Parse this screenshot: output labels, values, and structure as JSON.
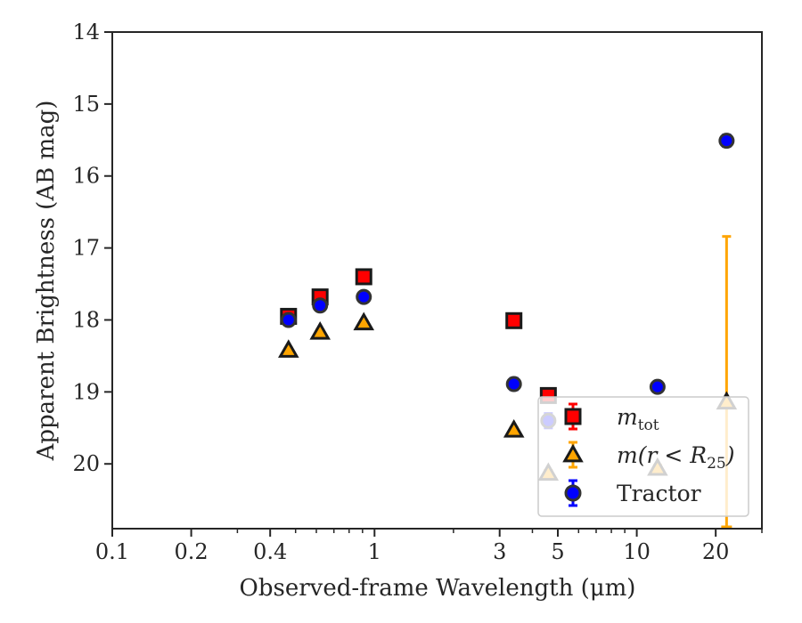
{
  "chart_data": {
    "type": "scatter",
    "xlabel": "Observed-frame Wavelength (μm)",
    "ylabel": "Apparent Brightness (AB mag)",
    "xscale": "log",
    "xlim": [
      0.1,
      30
    ],
    "ylim": [
      20.9,
      14
    ],
    "y_inverted": true,
    "grid": false,
    "legend_position": "lower-right",
    "x_ticks": [
      {
        "value": 0.1,
        "label": "0.1"
      },
      {
        "value": 0.2,
        "label": "0.2"
      },
      {
        "value": 0.4,
        "label": "0.4"
      },
      {
        "value": 1,
        "label": "1"
      },
      {
        "value": 3,
        "label": "3"
      },
      {
        "value": 5,
        "label": "5"
      },
      {
        "value": 10,
        "label": "10"
      },
      {
        "value": 20,
        "label": "20"
      }
    ],
    "y_ticks": [
      {
        "value": 14,
        "label": "14"
      },
      {
        "value": 15,
        "label": "15"
      },
      {
        "value": 16,
        "label": "16"
      },
      {
        "value": 17,
        "label": "17"
      },
      {
        "value": 18,
        "label": "18"
      },
      {
        "value": 19,
        "label": "19"
      },
      {
        "value": 20,
        "label": "20"
      }
    ],
    "series": [
      {
        "name": "m_tot",
        "legend_main": "m",
        "legend_sub": "tot",
        "marker": "square",
        "color": "#ff0000",
        "edge": "#1a1a1a",
        "points": [
          {
            "x": 0.47,
            "y": 17.95,
            "err": 0.05
          },
          {
            "x": 0.62,
            "y": 17.68,
            "err": 0.05
          },
          {
            "x": 0.91,
            "y": 17.4,
            "err": 0.04
          },
          {
            "x": 3.4,
            "y": 18.01,
            "err": 0.04
          },
          {
            "x": 4.6,
            "y": 19.05,
            "err": 0.06
          }
        ]
      },
      {
        "name": "m(r < R25)",
        "legend_main": "m(r < R",
        "legend_sub": "25",
        "legend_close": ")",
        "marker": "triangle",
        "color": "#ffa500",
        "edge": "#1a1a1a",
        "points": [
          {
            "x": 0.47,
            "y": 18.42,
            "err": 0.03
          },
          {
            "x": 0.62,
            "y": 18.17,
            "err": 0.03
          },
          {
            "x": 0.91,
            "y": 18.04,
            "err": 0.03
          },
          {
            "x": 3.4,
            "y": 19.53,
            "err": 0.03
          },
          {
            "x": 4.6,
            "y": 20.13,
            "err": 0.04
          },
          {
            "x": 12.0,
            "y": 20.06,
            "err": 0.04
          },
          {
            "x": 22.0,
            "y": 19.14,
            "err_up": 2.3,
            "err_down": 0.0,
            "upper_limit": true
          }
        ]
      },
      {
        "name": "Tractor",
        "legend_main": "Tractor",
        "marker": "circle",
        "color": "#0000ff",
        "edge": "#333333",
        "points": [
          {
            "x": 0.47,
            "y": 18.0,
            "err": 0.05
          },
          {
            "x": 0.62,
            "y": 17.8,
            "err": 0.06
          },
          {
            "x": 0.91,
            "y": 17.68,
            "err": 0.07
          },
          {
            "x": 3.4,
            "y": 18.89,
            "err": 0.08
          },
          {
            "x": 4.6,
            "y": 19.4,
            "err": 0.1
          },
          {
            "x": 12.0,
            "y": 18.93,
            "err": 0.05
          },
          {
            "x": 22.0,
            "y": 15.51,
            "err": 0.08
          }
        ]
      }
    ]
  }
}
